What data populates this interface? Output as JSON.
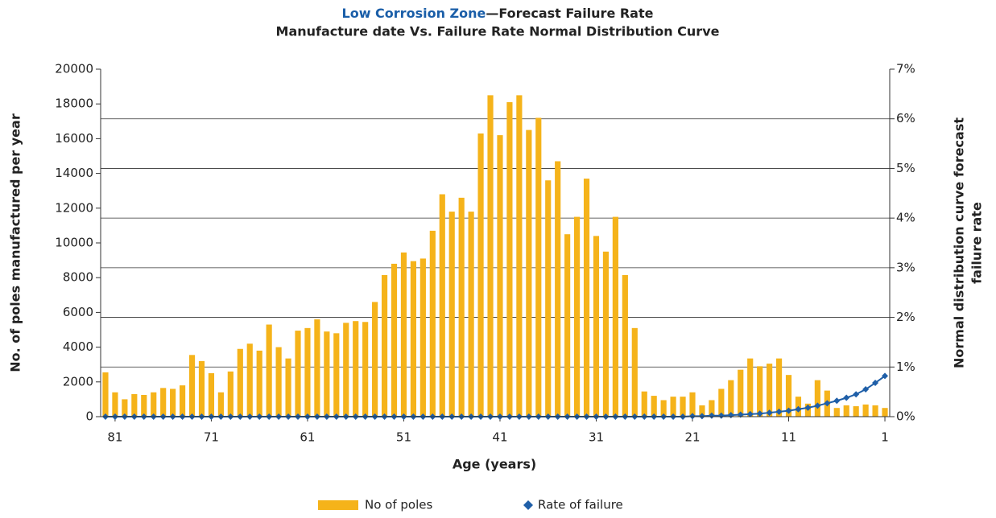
{
  "chart_data": {
    "type": "bar",
    "title_highlight": "Low Corrosion Zone",
    "title": "—Forecast Failure Rate",
    "subtitle": "Manufacture date Vs. Failure Rate Normal Distribution Curve",
    "xlabel": "Age (years)",
    "ylabel": "No. of poles manufactured per year",
    "y2label": [
      "Normal distribution curve forecast",
      "failure rate"
    ],
    "x": [
      82,
      81,
      80,
      79,
      78,
      77,
      76,
      75,
      74,
      73,
      72,
      71,
      70,
      69,
      68,
      67,
      66,
      65,
      64,
      63,
      62,
      61,
      60,
      59,
      58,
      57,
      56,
      55,
      54,
      53,
      52,
      51,
      50,
      49,
      48,
      47,
      46,
      45,
      44,
      43,
      42,
      41,
      40,
      39,
      38,
      37,
      36,
      35,
      34,
      33,
      32,
      31,
      30,
      29,
      28,
      27,
      26,
      25,
      24,
      23,
      22,
      21,
      20,
      19,
      18,
      17,
      16,
      15,
      14,
      13,
      12,
      11,
      10,
      9,
      8,
      7,
      6,
      5,
      4,
      3,
      2,
      1
    ],
    "xlim": [
      82.5,
      0.5
    ],
    "xticks": [
      81,
      71,
      61,
      51,
      41,
      31,
      21,
      11,
      1
    ],
    "ylim": [
      0,
      20000
    ],
    "yticks": [
      0,
      2000,
      4000,
      6000,
      8000,
      10000,
      12000,
      14000,
      16000,
      18000,
      20000
    ],
    "y2lim": [
      0,
      7
    ],
    "y2ticks": [
      {
        "value": 0,
        "label": "0%"
      },
      {
        "value": 1,
        "label": "1%"
      },
      {
        "value": 2,
        "label": "2%"
      },
      {
        "value": 3,
        "label": "3%"
      },
      {
        "value": 4,
        "label": "4%"
      },
      {
        "value": 5,
        "label": "5%"
      },
      {
        "value": 6,
        "label": "6%"
      },
      {
        "value": 7,
        "label": "7%"
      }
    ],
    "grid": true,
    "legend": "bottom",
    "series": [
      {
        "name": "No of poles",
        "type": "bar",
        "color": "#f5b31a",
        "values": [
          2550,
          1400,
          1000,
          1300,
          1250,
          1400,
          1650,
          1600,
          1800,
          3550,
          3200,
          2500,
          1400,
          2600,
          3900,
          4200,
          3800,
          5300,
          4000,
          3350,
          4950,
          5100,
          5600,
          4900,
          4800,
          5400,
          5500,
          5450,
          6600,
          8150,
          8800,
          9450,
          8950,
          9100,
          10700,
          12800,
          11800,
          12600,
          11800,
          16300,
          18500,
          16200,
          18100,
          18500,
          16500,
          17200,
          13600,
          14700,
          10500,
          11500,
          13700,
          10400,
          9500,
          11500,
          8150,
          5100,
          1450,
          1200,
          950,
          1150,
          1150,
          1400,
          650,
          950,
          1600,
          2100,
          2700,
          3350,
          2900,
          3050,
          3350,
          2400,
          1150,
          750,
          2100,
          1500,
          500,
          650,
          600,
          700,
          650,
          500
        ]
      },
      {
        "name": "Rate of failure",
        "type": "line",
        "axis": "y2",
        "color": "#1f5fa8",
        "values": [
          0,
          0,
          0,
          0,
          0,
          0,
          0,
          0,
          0,
          0,
          0,
          0,
          0,
          0,
          0,
          0,
          0,
          0,
          0,
          0,
          0,
          0,
          0,
          0,
          0,
          0,
          0,
          0,
          0,
          0,
          0,
          0,
          0,
          0,
          0,
          0,
          0,
          0,
          0,
          0,
          0,
          0,
          0,
          0,
          0,
          0,
          0,
          0,
          0,
          0,
          0,
          0,
          0,
          0,
          0,
          0,
          0,
          0,
          0,
          0,
          0,
          0.01,
          0.01,
          0.02,
          0.02,
          0.03,
          0.04,
          0.05,
          0.06,
          0.08,
          0.1,
          0.12,
          0.15,
          0.18,
          0.22,
          0.27,
          0.32,
          0.38,
          0.45,
          0.55,
          0.68,
          0.82
        ]
      }
    ]
  }
}
